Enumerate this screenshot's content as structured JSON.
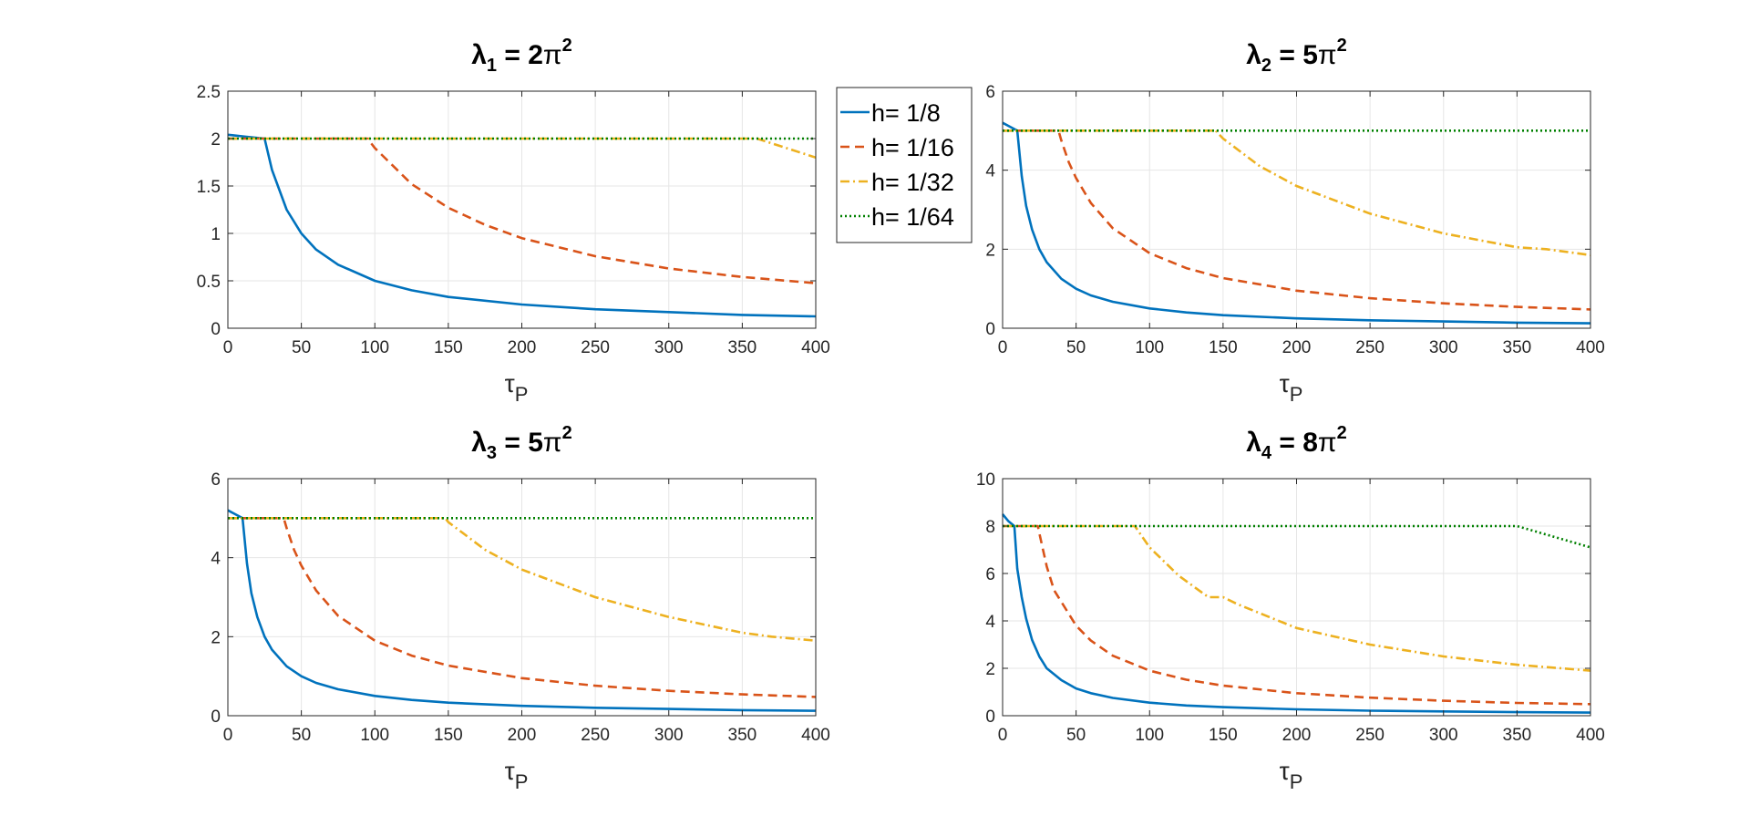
{
  "chart_data": [
    {
      "type": "line",
      "title": {
        "symbol": "λ",
        "sub": "1",
        "rest": " = 2",
        "pi": "π",
        "sup": "2"
      },
      "xlabel": {
        "symbol": "τ",
        "sub": "P"
      },
      "xlim": [
        0,
        400
      ],
      "ylim": [
        0,
        2.5
      ],
      "xticks": [
        "0",
        "50",
        "100",
        "150",
        "200",
        "250",
        "300",
        "350",
        "400"
      ],
      "yticks": [
        "0",
        "0.5",
        "1",
        "1.5",
        "2",
        "2.5"
      ],
      "grid": true,
      "series": [
        {
          "name": "h= 1/8",
          "x": [
            0,
            12,
            25,
            30,
            40,
            50,
            60,
            75,
            100,
            125,
            150,
            200,
            250,
            300,
            350,
            400
          ],
          "y": [
            2.04,
            2.02,
            2.0,
            1.67,
            1.25,
            1.0,
            0.83,
            0.67,
            0.5,
            0.4,
            0.33,
            0.25,
            0.2,
            0.17,
            0.14,
            0.125
          ]
        },
        {
          "name": "h= 1/16",
          "x": [
            0,
            95,
            100,
            125,
            150,
            175,
            200,
            250,
            300,
            350,
            400
          ],
          "y": [
            2.0,
            2.0,
            1.9,
            1.52,
            1.27,
            1.09,
            0.95,
            0.76,
            0.63,
            0.54,
            0.475
          ]
        },
        {
          "name": "h= 1/32",
          "x": [
            0,
            360,
            380,
            400
          ],
          "y": [
            2.0,
            2.0,
            1.9,
            1.8
          ]
        },
        {
          "name": "h= 1/64",
          "x": [
            0,
            400
          ],
          "y": [
            2.0,
            2.0
          ]
        }
      ]
    },
    {
      "type": "line",
      "title": {
        "symbol": "λ",
        "sub": "2",
        "rest": " = 5",
        "pi": "π",
        "sup": "2"
      },
      "xlabel": {
        "symbol": "τ",
        "sub": "P"
      },
      "xlim": [
        0,
        400
      ],
      "ylim": [
        0,
        6
      ],
      "xticks": [
        "0",
        "50",
        "100",
        "150",
        "200",
        "250",
        "300",
        "350",
        "400"
      ],
      "yticks": [
        "0",
        "2",
        "4",
        "6"
      ],
      "grid": true,
      "series": [
        {
          "name": "h= 1/8",
          "x": [
            0,
            5,
            10,
            13,
            16,
            20,
            25,
            30,
            40,
            50,
            60,
            75,
            100,
            125,
            150,
            200,
            250,
            300,
            350,
            400
          ],
          "y": [
            5.2,
            5.1,
            5.0,
            3.85,
            3.1,
            2.5,
            2.0,
            1.67,
            1.25,
            1.0,
            0.83,
            0.67,
            0.5,
            0.4,
            0.33,
            0.25,
            0.2,
            0.17,
            0.14,
            0.125
          ]
        },
        {
          "name": "h= 1/16",
          "x": [
            0,
            38,
            40,
            45,
            50,
            60,
            75,
            100,
            125,
            150,
            200,
            250,
            300,
            350,
            400
          ],
          "y": [
            5.0,
            5.0,
            4.75,
            4.2,
            3.8,
            3.17,
            2.53,
            1.9,
            1.52,
            1.27,
            0.95,
            0.76,
            0.63,
            0.54,
            0.475
          ]
        },
        {
          "name": "h= 1/32",
          "x": [
            0,
            145,
            150,
            175,
            200,
            250,
            300,
            350,
            370,
            400
          ],
          "y": [
            5.0,
            5.0,
            4.8,
            4.1,
            3.6,
            2.9,
            2.4,
            2.05,
            2.0,
            1.85
          ]
        },
        {
          "name": "h= 1/64",
          "x": [
            0,
            400
          ],
          "y": [
            5.0,
            5.0
          ]
        }
      ]
    },
    {
      "type": "line",
      "title": {
        "symbol": "λ",
        "sub": "3",
        "rest": " = 5",
        "pi": "π",
        "sup": "2"
      },
      "xlabel": {
        "symbol": "τ",
        "sub": "P"
      },
      "xlim": [
        0,
        400
      ],
      "ylim": [
        0,
        6
      ],
      "xticks": [
        "0",
        "50",
        "100",
        "150",
        "200",
        "250",
        "300",
        "350",
        "400"
      ],
      "yticks": [
        "0",
        "2",
        "4",
        "6"
      ],
      "grid": true,
      "series": [
        {
          "name": "h= 1/8",
          "x": [
            0,
            5,
            10,
            13,
            16,
            20,
            25,
            30,
            40,
            50,
            60,
            75,
            100,
            125,
            150,
            200,
            250,
            300,
            350,
            400
          ],
          "y": [
            5.2,
            5.1,
            5.0,
            3.85,
            3.1,
            2.5,
            2.0,
            1.67,
            1.25,
            1.0,
            0.83,
            0.67,
            0.5,
            0.4,
            0.33,
            0.25,
            0.2,
            0.17,
            0.14,
            0.125
          ]
        },
        {
          "name": "h= 1/16",
          "x": [
            0,
            38,
            40,
            45,
            50,
            60,
            75,
            100,
            125,
            150,
            200,
            250,
            300,
            350,
            400
          ],
          "y": [
            5.0,
            5.0,
            4.75,
            4.2,
            3.8,
            3.17,
            2.53,
            1.9,
            1.52,
            1.27,
            0.95,
            0.76,
            0.63,
            0.54,
            0.475
          ]
        },
        {
          "name": "h= 1/32",
          "x": [
            0,
            148,
            150,
            175,
            200,
            250,
            300,
            350,
            370,
            400
          ],
          "y": [
            5.0,
            5.0,
            4.9,
            4.2,
            3.7,
            3.0,
            2.5,
            2.1,
            2.0,
            1.9
          ]
        },
        {
          "name": "h= 1/64",
          "x": [
            0,
            400
          ],
          "y": [
            5.0,
            5.0
          ]
        }
      ]
    },
    {
      "type": "line",
      "title": {
        "symbol": "λ",
        "sub": "4",
        "rest": " = 8",
        "pi": "π",
        "sup": "2"
      },
      "xlabel": {
        "symbol": "τ",
        "sub": "P"
      },
      "xlim": [
        0,
        400
      ],
      "ylim": [
        0,
        10
      ],
      "xticks": [
        "0",
        "50",
        "100",
        "150",
        "200",
        "250",
        "300",
        "350",
        "400"
      ],
      "yticks": [
        "0",
        "2",
        "4",
        "6",
        "8",
        "10"
      ],
      "grid": true,
      "series": [
        {
          "name": "h= 1/8",
          "x": [
            0,
            4,
            8,
            10,
            13,
            16,
            20,
            25,
            30,
            40,
            50,
            60,
            75,
            100,
            125,
            150,
            200,
            250,
            300,
            350,
            400
          ],
          "y": [
            8.5,
            8.2,
            8.0,
            6.2,
            5.0,
            4.1,
            3.2,
            2.5,
            2.0,
            1.5,
            1.15,
            0.95,
            0.75,
            0.55,
            0.43,
            0.36,
            0.27,
            0.21,
            0.18,
            0.15,
            0.13
          ]
        },
        {
          "name": "h= 1/16",
          "x": [
            0,
            24,
            25,
            30,
            35,
            40,
            50,
            60,
            75,
            100,
            125,
            150,
            200,
            250,
            300,
            350,
            400
          ],
          "y": [
            8.0,
            8.0,
            7.7,
            6.3,
            5.3,
            4.8,
            3.8,
            3.17,
            2.53,
            1.9,
            1.52,
            1.27,
            0.95,
            0.76,
            0.63,
            0.54,
            0.49
          ]
        },
        {
          "name": "h= 1/32",
          "x": [
            0,
            90,
            100,
            120,
            140,
            150,
            160,
            200,
            250,
            300,
            350,
            400
          ],
          "y": [
            8.0,
            8.0,
            7.1,
            5.9,
            5.0,
            5.0,
            4.7,
            3.7,
            3.0,
            2.5,
            2.15,
            1.9
          ]
        },
        {
          "name": "h= 1/64",
          "x": [
            0,
            350,
            400
          ],
          "y": [
            8.0,
            8.0,
            7.1
          ]
        }
      ]
    }
  ],
  "legend": {
    "placement": "between top panels",
    "entries": [
      "h= 1/8",
      "h= 1/16",
      "h= 1/32",
      "h= 1/64"
    ]
  },
  "colors": {
    "h= 1/8": "#0072BD",
    "h= 1/16": "#D95319",
    "h= 1/32": "#EDB120",
    "h= 1/64": "#008000",
    "axes": "#262626",
    "grid": "#e6e6e6"
  },
  "line_styles": {
    "h= 1/8": "solid",
    "h= 1/16": "dashed",
    "h= 1/32": "dashdot",
    "h= 1/64": "dotted"
  }
}
